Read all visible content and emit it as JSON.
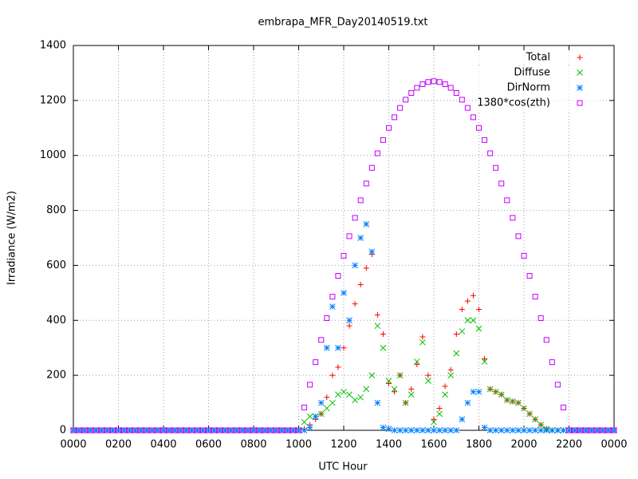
{
  "chart_data": {
    "type": "scatter",
    "title": "embrapa_MFR_Day20140519.txt",
    "xlabel": "UTC Hour",
    "ylabel": "Irradiance (W/m2)",
    "xlim": [
      0,
      24
    ],
    "xticks": [
      {
        "value": 0,
        "label": "0000"
      },
      {
        "value": 2,
        "label": "0200"
      },
      {
        "value": 4,
        "label": "0400"
      },
      {
        "value": 6,
        "label": "0600"
      },
      {
        "value": 8,
        "label": "0800"
      },
      {
        "value": 10,
        "label": "1000"
      },
      {
        "value": 12,
        "label": "1200"
      },
      {
        "value": 14,
        "label": "1400"
      },
      {
        "value": 16,
        "label": "1600"
      },
      {
        "value": 18,
        "label": "1800"
      },
      {
        "value": 20,
        "label": "2000"
      },
      {
        "value": 22,
        "label": "2200"
      },
      {
        "value": 24,
        "label": "0000"
      }
    ],
    "ylim": [
      0,
      1400
    ],
    "yticks": [
      0,
      200,
      400,
      600,
      800,
      1000,
      1200,
      1400
    ],
    "grid": true,
    "legend": "top-right",
    "x": [
      0,
      0.25,
      0.5,
      0.75,
      1,
      1.25,
      1.5,
      1.75,
      2,
      2.25,
      2.5,
      2.75,
      3,
      3.25,
      3.5,
      3.75,
      4,
      4.25,
      4.5,
      4.75,
      5,
      5.25,
      5.5,
      5.75,
      6,
      6.25,
      6.5,
      6.75,
      7,
      7.25,
      7.5,
      7.75,
      8,
      8.25,
      8.5,
      8.75,
      9,
      9.25,
      9.5,
      9.75,
      10,
      10.25,
      10.5,
      10.75,
      11,
      11.25,
      11.5,
      11.75,
      12,
      12.25,
      12.5,
      12.75,
      13,
      13.25,
      13.5,
      13.75,
      14,
      14.25,
      14.5,
      14.75,
      15,
      15.25,
      15.5,
      15.75,
      16,
      16.25,
      16.5,
      16.75,
      17,
      17.25,
      17.5,
      17.75,
      18,
      18.25,
      18.5,
      18.75,
      19,
      19.25,
      19.5,
      19.75,
      20,
      20.25,
      20.5,
      20.75,
      21,
      21.25,
      21.5,
      21.75,
      22,
      22.25,
      22.5,
      22.75,
      23,
      23.25,
      23.5,
      23.75,
      24
    ],
    "series": [
      {
        "name": "Total",
        "color": "#ff0000",
        "marker": "plus",
        "values": [
          0,
          0,
          0,
          0,
          0,
          0,
          0,
          0,
          0,
          0,
          0,
          0,
          0,
          0,
          0,
          0,
          0,
          0,
          0,
          0,
          0,
          0,
          0,
          0,
          0,
          0,
          0,
          0,
          0,
          0,
          0,
          0,
          0,
          0,
          0,
          0,
          0,
          0,
          0,
          0,
          0,
          5,
          20,
          40,
          60,
          120,
          200,
          230,
          300,
          380,
          460,
          530,
          590,
          640,
          420,
          350,
          170,
          140,
          200,
          100,
          150,
          240,
          340,
          200,
          40,
          80,
          160,
          220,
          350,
          440,
          470,
          490,
          440,
          260,
          150,
          140,
          130,
          110,
          105,
          100,
          80,
          60,
          40,
          20,
          5,
          0,
          0,
          0,
          0,
          0,
          0,
          0,
          0,
          0,
          0,
          0,
          0
        ]
      },
      {
        "name": "Diffuse",
        "color": "#00c000",
        "marker": "cross",
        "values": [
          0,
          0,
          0,
          0,
          0,
          0,
          0,
          0,
          0,
          0,
          0,
          0,
          0,
          0,
          0,
          0,
          0,
          0,
          0,
          0,
          0,
          0,
          0,
          0,
          0,
          0,
          0,
          0,
          0,
          0,
          0,
          0,
          0,
          0,
          0,
          0,
          0,
          0,
          0,
          0,
          0,
          30,
          50,
          50,
          60,
          80,
          100,
          130,
          140,
          130,
          110,
          120,
          150,
          200,
          380,
          300,
          180,
          150,
          200,
          100,
          130,
          250,
          320,
          180,
          30,
          60,
          130,
          200,
          280,
          360,
          400,
          400,
          370,
          250,
          150,
          140,
          130,
          110,
          105,
          100,
          80,
          60,
          40,
          20,
          5,
          0,
          0,
          0,
          0,
          0,
          0,
          0,
          0,
          0,
          0,
          0,
          0
        ]
      },
      {
        "name": "DirNorm",
        "color": "#0080ff",
        "marker": "star",
        "values": [
          0,
          0,
          0,
          0,
          0,
          0,
          0,
          0,
          0,
          0,
          0,
          0,
          0,
          0,
          0,
          0,
          0,
          0,
          0,
          0,
          0,
          0,
          0,
          0,
          0,
          0,
          0,
          0,
          0,
          0,
          0,
          0,
          0,
          0,
          0,
          0,
          0,
          0,
          0,
          0,
          0,
          0,
          10,
          50,
          100,
          300,
          450,
          300,
          500,
          400,
          600,
          700,
          750,
          650,
          100,
          10,
          5,
          0,
          0,
          0,
          0,
          0,
          0,
          0,
          0,
          0,
          0,
          0,
          0,
          40,
          100,
          140,
          140,
          10,
          0,
          0,
          0,
          0,
          0,
          0,
          0,
          0,
          0,
          0,
          0,
          0,
          0,
          0,
          0,
          0,
          0,
          0,
          0,
          0,
          0,
          0,
          0
        ]
      },
      {
        "name": "1380*cos(zth)",
        "color": "#c000ff",
        "marker": "square",
        "values": [
          0,
          0,
          0,
          0,
          0,
          0,
          0,
          0,
          0,
          0,
          0,
          0,
          0,
          0,
          0,
          0,
          0,
          0,
          0,
          0,
          0,
          0,
          0,
          0,
          0,
          0,
          0,
          0,
          0,
          0,
          0,
          0,
          0,
          0,
          0,
          0,
          0,
          0,
          0,
          0,
          0,
          83,
          166,
          248,
          329,
          408,
          486,
          562,
          635,
          706,
          773,
          837,
          898,
          955,
          1008,
          1056,
          1100,
          1139,
          1173,
          1203,
          1227,
          1246,
          1259,
          1267,
          1270,
          1267,
          1259,
          1246,
          1227,
          1203,
          1173,
          1139,
          1100,
          1056,
          1008,
          955,
          898,
          837,
          773,
          706,
          635,
          562,
          486,
          408,
          329,
          248,
          166,
          83,
          0,
          0,
          0,
          0,
          0,
          0,
          0,
          0,
          0
        ]
      }
    ]
  }
}
